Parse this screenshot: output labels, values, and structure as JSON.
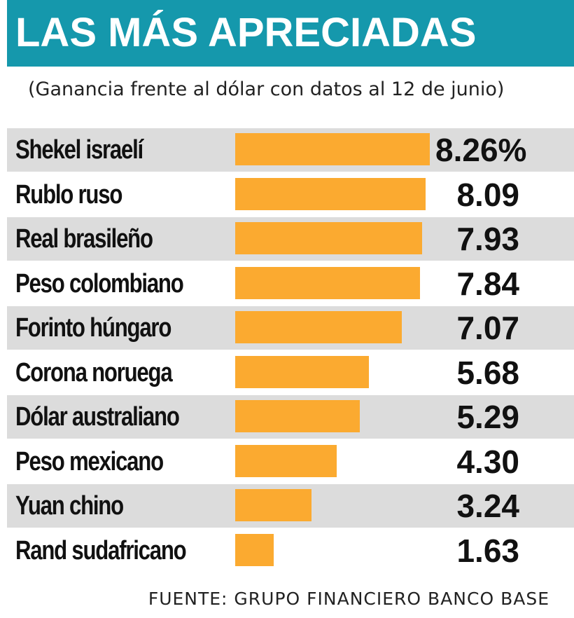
{
  "header": {
    "title": "LAS MÁS APRECIADAS"
  },
  "subtitle": "(Ganancia frente al dólar con datos al 12 de junio)",
  "source": "FUENTE: GRUPO FINANCIERO BANCO BASE",
  "colors": {
    "header_bg": "#1598ac",
    "bar": "#fbaa30",
    "row_shade": "#dcdcdc"
  },
  "chart_data": {
    "type": "bar",
    "orientation": "horizontal",
    "title": "LAS MÁS APRECIADAS",
    "subtitle": "(Ganancia frente al dólar con datos al 12 de junio)",
    "categories": [
      "Shekel israelí",
      "Rublo ruso",
      "Real brasileño",
      "Peso colombiano",
      "Forinto húngaro",
      "Corona noruega",
      "Dólar australiano",
      "Peso mexicano",
      "Yuan chino",
      "Rand sudafricano"
    ],
    "values": [
      8.26,
      8.09,
      7.93,
      7.84,
      7.07,
      5.68,
      5.29,
      4.3,
      3.24,
      1.63
    ],
    "value_labels": [
      "8.26%",
      "8.09",
      "7.93",
      "7.84",
      "7.07",
      "5.68",
      "5.29",
      "4.30",
      "3.24",
      "1.63"
    ],
    "xlim": [
      0,
      8.26
    ],
    "grid": false,
    "legend": "none"
  }
}
